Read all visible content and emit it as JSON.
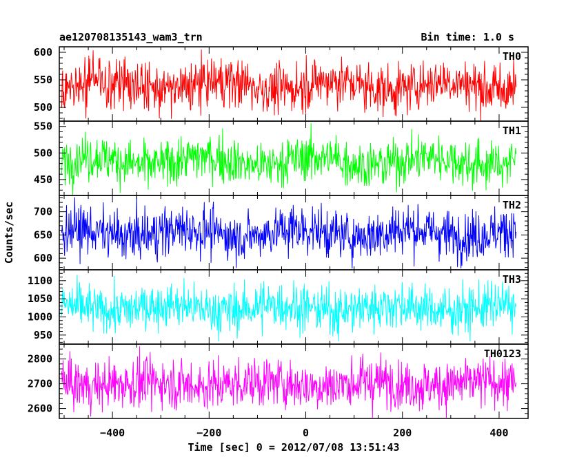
{
  "header": {
    "left_title": "ae120708135143_wam3_trn",
    "right_title": "Bin time: 1.0 s"
  },
  "chart_data": {
    "type": "line",
    "title": "ae120708135143_wam3_trn",
    "subtitle": "Bin time: 1.0 s",
    "xlabel": "Time [sec] 0 = 2012/07/08 13:51:43",
    "ylabel": "Counts/sec",
    "xlim": [
      -510,
      460
    ],
    "x_ticks": [
      -400,
      -200,
      0,
      200,
      400
    ],
    "x_tick_labels": [
      "−400",
      "−200",
      "0",
      "200",
      "400"
    ],
    "x_range_data": [
      -505,
      435
    ],
    "bin_time_s": 1.0,
    "grid": false,
    "panels": [
      {
        "name": "TH0",
        "color": "#ff0000",
        "ylim": [
          475,
          610
        ],
        "y_ticks": [
          500,
          550,
          600
        ],
        "mean": 540,
        "std": 22,
        "data_min": 470,
        "data_max": 612
      },
      {
        "name": "TH1",
        "color": "#00ff00",
        "ylim": [
          420,
          560
        ],
        "y_ticks": [
          450,
          500,
          550
        ],
        "mean": 485,
        "std": 22,
        "data_min": 420,
        "data_max": 558
      },
      {
        "name": "TH2",
        "color": "#0000ff",
        "ylim": [
          575,
          735
        ],
        "y_ticks": [
          600,
          650,
          700
        ],
        "mean": 655,
        "std": 26,
        "data_min": 575,
        "data_max": 735
      },
      {
        "name": "TH3",
        "color": "#00ffff",
        "ylim": [
          925,
          1130
        ],
        "y_ticks": [
          950,
          1000,
          1050,
          1100
        ],
        "mean": 1025,
        "std": 32,
        "data_min": 925,
        "data_max": 1130
      },
      {
        "name": "TH0123",
        "color": "#ff00ff",
        "ylim": [
          2560,
          2860
        ],
        "y_ticks": [
          2600,
          2700,
          2800
        ],
        "mean": 2700,
        "std": 50,
        "data_min": 2560,
        "data_max": 2860
      }
    ]
  }
}
